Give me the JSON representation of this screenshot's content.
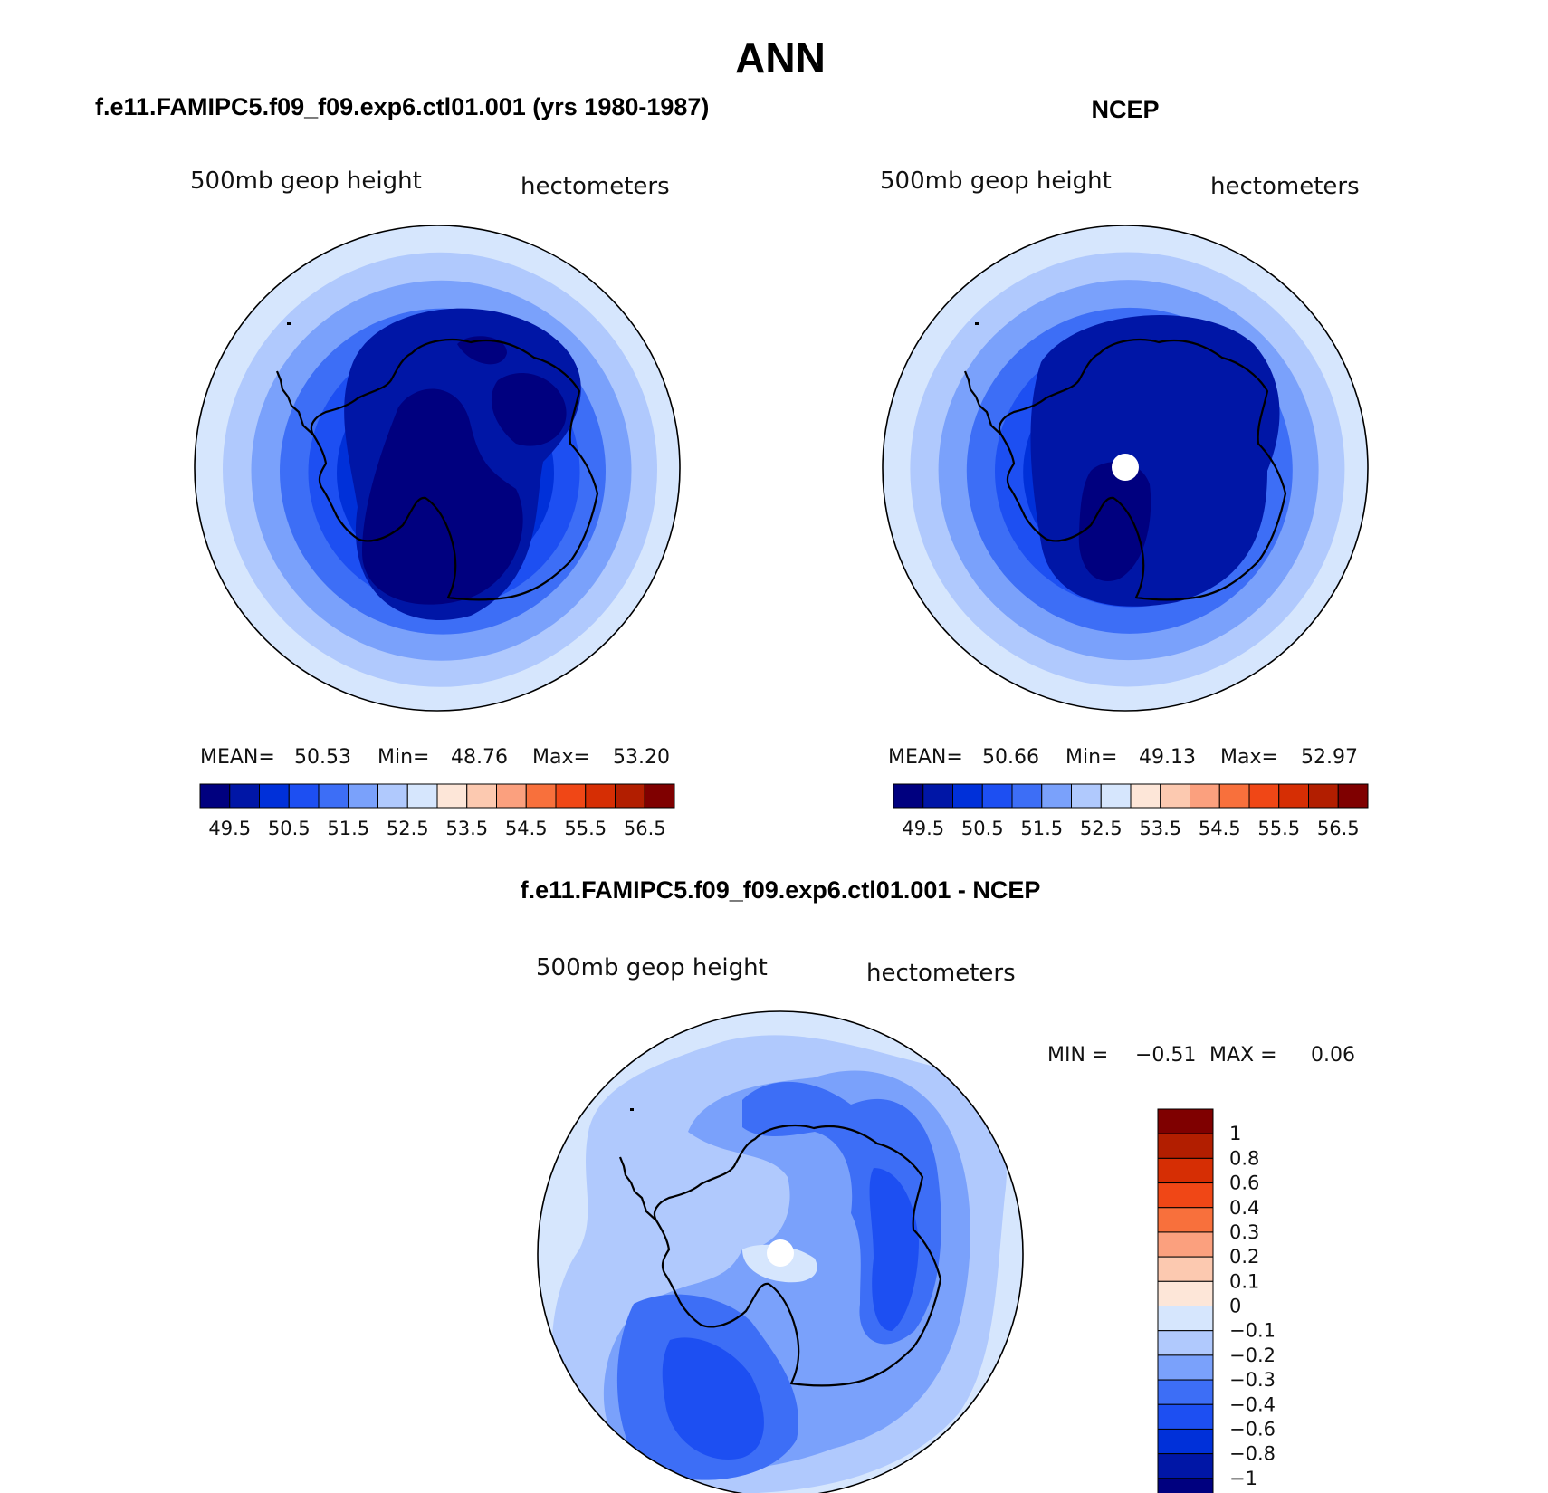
{
  "figure": {
    "title": "ANN",
    "units": "hectometers",
    "variable": "500mb geop height"
  },
  "colors": {
    "abs_levels": [
      "#00007f",
      "#0016a6",
      "#0030d9",
      "#1d4ff2",
      "#3d6ef6",
      "#7aa1fb",
      "#b0c9fd",
      "#d6e6fd",
      "#fde6d8",
      "#fcc9b0",
      "#fba07e",
      "#f8703c",
      "#f04716",
      "#d62e04",
      "#b21e00",
      "#7f0000"
    ],
    "diff_levels": [
      "#00007f",
      "#0016a6",
      "#0030d9",
      "#1d4ff2",
      "#3d6ef6",
      "#7aa1fb",
      "#b0c9fd",
      "#d6e6fd",
      "#fde6d8",
      "#fcc9b0",
      "#fba07e",
      "#f8703c",
      "#f04716",
      "#d62e04",
      "#b21e00",
      "#7f0000"
    ],
    "pole_hole": "#ffffff"
  },
  "chart_data": [
    {
      "type": "heatmap",
      "panel": "model",
      "title": "f.e11.FAMIPC5.f09_f09.exp6.ctl01.001 (yrs 1980-1987)",
      "left_label": "500mb geop height",
      "right_label": "hectometers",
      "stats": {
        "mean_label": "MEAN=",
        "mean": "50.53",
        "min_label": "Min=",
        "min": "48.76",
        "max_label": "Max=",
        "max": "53.20"
      },
      "colorbar_ticks": [
        "49.5",
        "50.5",
        "51.5",
        "52.5",
        "53.5",
        "54.5",
        "55.5",
        "56.5"
      ],
      "levels": [
        49.0,
        49.5,
        50.0,
        50.5,
        51.0,
        51.5,
        52.0,
        52.5,
        53.0,
        53.5,
        54.0,
        54.5,
        55.0,
        55.5,
        56.0,
        56.5
      ],
      "contour_bands_hm": [
        53.0,
        52.5,
        52.0,
        51.5,
        51.0,
        50.5,
        50.0,
        49.5,
        49.0
      ]
    },
    {
      "type": "heatmap",
      "panel": "obs",
      "title": "NCEP",
      "left_label": "500mb geop height",
      "right_label": "hectometers",
      "stats": {
        "mean_label": "MEAN=",
        "mean": "50.66",
        "min_label": "Min=",
        "min": "49.13",
        "max_label": "Max=",
        "max": "52.97"
      },
      "colorbar_ticks": [
        "49.5",
        "50.5",
        "51.5",
        "52.5",
        "53.5",
        "54.5",
        "55.5",
        "56.5"
      ],
      "levels": [
        49.0,
        49.5,
        50.0,
        50.5,
        51.0,
        51.5,
        52.0,
        52.5,
        53.0,
        53.5,
        54.0,
        54.5,
        55.0,
        55.5,
        56.0,
        56.5
      ],
      "contour_bands_hm": [
        53.0,
        52.5,
        52.0,
        51.5,
        51.0,
        50.5,
        50.0,
        49.5
      ]
    },
    {
      "type": "heatmap",
      "panel": "difference",
      "title": "f.e11.FAMIPC5.f09_f09.exp6.ctl01.001 - NCEP",
      "left_label": "500mb geop height",
      "right_label": "hectometers",
      "stats": {
        "min_label": "MIN =",
        "min": "−0.51",
        "max_label": "MAX =",
        "max": "0.06"
      },
      "colorbar_ticks": [
        "1",
        "0.8",
        "0.6",
        "0.4",
        "0.3",
        "0.2",
        "0.1",
        "0",
        "−0.1",
        "−0.2",
        "−0.3",
        "−0.4",
        "−0.6",
        "−0.8",
        "−1"
      ]
    }
  ]
}
